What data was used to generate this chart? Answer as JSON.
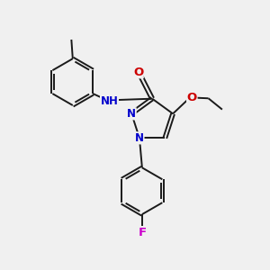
{
  "background_color": "#f0f0f0",
  "bond_color": "#1a1a1a",
  "atom_colors": {
    "N": "#0000cc",
    "O": "#cc0000",
    "F": "#cc00cc",
    "NH": "#0000cc",
    "C": "#1a1a1a"
  },
  "lw": 1.4,
  "fs": 8.5,
  "fig_width": 3.0,
  "fig_height": 3.0,
  "dpi": 100
}
